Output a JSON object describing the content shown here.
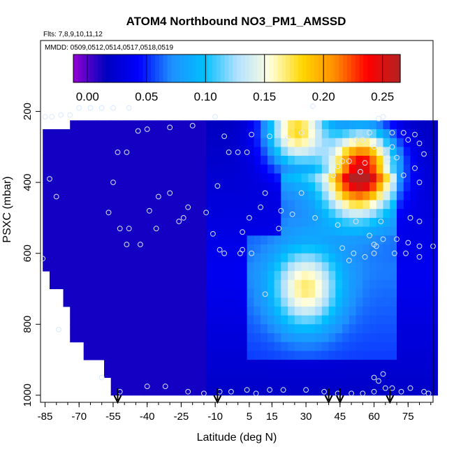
{
  "chart_data": {
    "type": "heatmap",
    "title": "ATOM4 Northbound NO3_PM1_AMSSD",
    "flights_note": "Flts: 7,8,9,10,11,12",
    "dates_note": "MMDD: 0509,0512,0514,0517,0518,0519",
    "xlabel": "Latitude (deg N)",
    "ylabel": "PSXC (mbar)",
    "x_ticks": [
      "-85",
      "-70",
      "-55",
      "-40",
      "-25",
      "-10",
      "5",
      "15",
      "30",
      "45",
      "60",
      "75"
    ],
    "y_ticks": [
      "200",
      "400",
      "600",
      "800",
      "1000"
    ],
    "xlim": [
      -87,
      86
    ],
    "ylim": [
      1020,
      0
    ],
    "colorbar": {
      "ticks": [
        "0.00",
        "0.05",
        "0.10",
        "0.15",
        "0.20",
        "0.25"
      ],
      "range": [
        -0.012,
        0.265
      ],
      "stops": [
        "#9400d3",
        "#0000bf",
        "#0000ff",
        "#1e90ff",
        "#00bfff",
        "#b0e0ff",
        "#ffffe0",
        "#ffd700",
        "#ff8c00",
        "#ff0000",
        "#b22222"
      ]
    },
    "field": {
      "background": 0.012,
      "plumes": [
        {
          "lat": 30,
          "p": 700,
          "value": 0.13
        },
        {
          "lat": 50,
          "p": 400,
          "value": 0.1
        },
        {
          "lat": 26,
          "p": 250,
          "value": 0.2
        },
        {
          "lat": 56,
          "p": 350,
          "value": 0.21
        }
      ]
    },
    "flight_marker_lats": [
      -53,
      -9,
      40,
      45,
      67
    ],
    "observations": [
      [
        -70,
        190
      ],
      [
        -65,
        190
      ],
      [
        -60,
        190
      ],
      [
        -55,
        190
      ],
      [
        -48,
        190
      ],
      [
        -78,
        210
      ],
      [
        -74,
        210
      ],
      [
        -82,
        215
      ],
      [
        -85,
        215
      ],
      [
        33,
        185
      ],
      [
        -6,
        270
      ],
      [
        -10,
        215
      ],
      [
        -20,
        240
      ],
      [
        -30,
        245
      ],
      [
        -44,
        255
      ],
      [
        -40,
        250
      ],
      [
        58,
        260
      ],
      [
        64,
        215
      ],
      [
        62,
        220
      ],
      [
        68,
        260
      ],
      [
        73,
        260
      ],
      [
        75,
        280
      ],
      [
        78,
        265
      ],
      [
        80,
        290
      ],
      [
        82,
        320
      ],
      [
        52,
        280
      ],
      [
        55,
        280
      ],
      [
        60,
        300
      ],
      [
        64,
        310
      ],
      [
        66,
        340
      ],
      [
        68,
        300
      ],
      [
        70,
        330
      ],
      [
        73,
        380
      ],
      [
        78,
        360
      ],
      [
        80,
        400
      ],
      [
        66,
        330
      ],
      [
        -49,
        315
      ],
      [
        -53,
        315
      ],
      [
        -4,
        315
      ],
      [
        0,
        315
      ],
      [
        4,
        315
      ],
      [
        28,
        260
      ],
      [
        22,
        275
      ],
      [
        14,
        270
      ],
      [
        6,
        265
      ],
      [
        44,
        355
      ],
      [
        46,
        340
      ],
      [
        49,
        340
      ],
      [
        54,
        370
      ],
      [
        56,
        345
      ],
      [
        42,
        380
      ],
      [
        -55,
        400
      ],
      [
        -83,
        390
      ],
      [
        -9,
        410
      ],
      [
        12,
        430
      ],
      [
        28,
        430
      ],
      [
        -30,
        430
      ],
      [
        -35,
        440
      ],
      [
        -80,
        440
      ],
      [
        -22,
        470
      ],
      [
        -39,
        480
      ],
      [
        -57,
        485
      ],
      [
        -14,
        485
      ],
      [
        10,
        470
      ],
      [
        19,
        480
      ],
      [
        24,
        490
      ],
      [
        34,
        500
      ],
      [
        44,
        520
      ],
      [
        52,
        510
      ],
      [
        63,
        510
      ],
      [
        76,
        500
      ],
      [
        80,
        510
      ],
      [
        5,
        500
      ],
      [
        -24,
        500
      ],
      [
        -26,
        510
      ],
      [
        -52,
        530
      ],
      [
        -48,
        530
      ],
      [
        -36,
        530
      ],
      [
        -11,
        545
      ],
      [
        2,
        540
      ],
      [
        18,
        530
      ],
      [
        58,
        550
      ],
      [
        64,
        560
      ],
      [
        70,
        560
      ],
      [
        75,
        570
      ],
      [
        80,
        580
      ],
      [
        86,
        580
      ],
      [
        60,
        575
      ],
      [
        61,
        580
      ],
      [
        -49,
        575
      ],
      [
        -43,
        575
      ],
      [
        -8,
        590
      ],
      [
        -6,
        600
      ],
      [
        2,
        590
      ],
      [
        6,
        600
      ],
      [
        46,
        585
      ],
      [
        51,
        600
      ],
      [
        49,
        620
      ],
      [
        56,
        610
      ],
      [
        60,
        600
      ],
      [
        69,
        600
      ],
      [
        74,
        600
      ],
      [
        80,
        610
      ],
      [
        -86,
        615
      ],
      [
        1,
        600
      ],
      [
        12,
        715
      ],
      [
        -79,
        815
      ],
      [
        -60,
        950
      ],
      [
        60,
        950
      ],
      [
        62,
        960
      ],
      [
        64,
        940
      ],
      [
        65,
        980
      ],
      [
        68,
        980
      ],
      [
        72,
        990
      ],
      [
        76,
        980
      ],
      [
        82,
        990
      ],
      [
        84,
        995
      ],
      [
        -52,
        990
      ],
      [
        -40,
        975
      ],
      [
        -32,
        975
      ],
      [
        -22,
        990
      ],
      [
        -15,
        995
      ],
      [
        -8,
        990
      ],
      [
        -3,
        990
      ],
      [
        4,
        985
      ],
      [
        8,
        995
      ],
      [
        14,
        985
      ],
      [
        20,
        985
      ],
      [
        30,
        985
      ],
      [
        38,
        990
      ],
      [
        44,
        995
      ],
      [
        50,
        995
      ],
      [
        55,
        995
      ],
      [
        60,
        990
      ]
    ]
  }
}
